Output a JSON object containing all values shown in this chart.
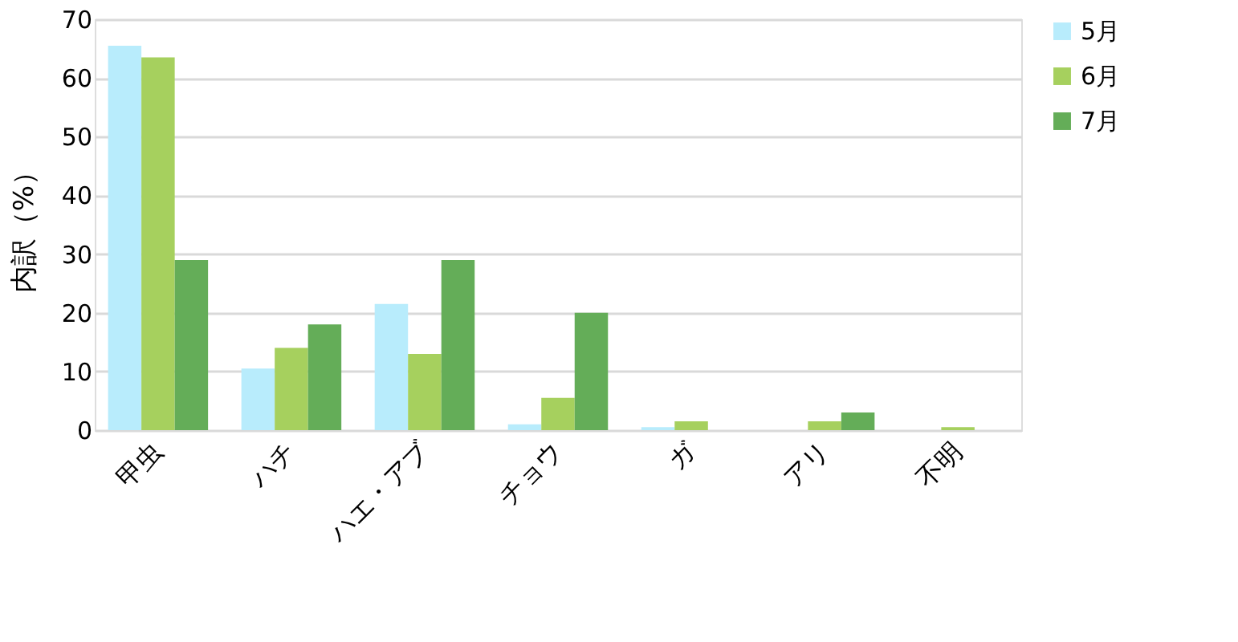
{
  "chart_data": {
    "type": "bar",
    "ylabel": "内訳（%）",
    "categories": [
      "甲虫",
      "ハチ",
      "ハエ・アブ",
      "チョウ",
      "ガ",
      "アリ",
      "不明"
    ],
    "series": [
      {
        "name": "5月",
        "color": "#b8ecfc",
        "values": [
          65.5,
          10.5,
          21.5,
          1,
          0.5,
          0,
          0
        ]
      },
      {
        "name": "6月",
        "color": "#a6d05e",
        "values": [
          63.5,
          14,
          13,
          5.5,
          1.5,
          1.5,
          0.5
        ]
      },
      {
        "name": "7月",
        "color": "#64ad58",
        "values": [
          29,
          18,
          29,
          20,
          0,
          3,
          0
        ]
      }
    ],
    "ylim": [
      0,
      70
    ],
    "yticks": [
      0,
      10,
      20,
      30,
      40,
      50,
      60,
      70
    ],
    "grid": "y",
    "legend": "right"
  }
}
